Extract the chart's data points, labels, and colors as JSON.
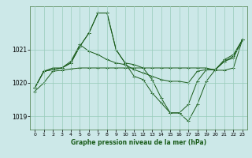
{
  "bg_color": "#cce8e8",
  "grid_color": "#99ccbb",
  "line_color": "#1a5c1a",
  "marker_color": "#1a5c1a",
  "xlabel": "Graphe pression niveau de la mer (hPa)",
  "ylim": [
    1018.6,
    1022.3
  ],
  "xlim": [
    -0.5,
    23.5
  ],
  "yticks": [
    1019,
    1020,
    1021
  ],
  "xticks": [
    0,
    1,
    2,
    3,
    4,
    5,
    6,
    7,
    8,
    9,
    10,
    11,
    12,
    13,
    14,
    15,
    16,
    17,
    18,
    19,
    20,
    21,
    22,
    23
  ],
  "series": [
    [
      1019.75,
      1020.0,
      1020.35,
      1020.38,
      1020.42,
      1020.45,
      1020.45,
      1020.45,
      1020.45,
      1020.45,
      1020.45,
      1020.45,
      1020.45,
      1020.45,
      1020.45,
      1020.45,
      1020.45,
      1020.45,
      1020.45,
      1020.45,
      1020.38,
      1020.38,
      1020.45,
      1021.3
    ],
    [
      1019.85,
      1020.35,
      1020.4,
      1020.45,
      1020.6,
      1021.1,
      1021.5,
      1022.1,
      1022.1,
      1021.0,
      1020.6,
      1020.55,
      1020.45,
      1020.1,
      1019.55,
      1019.1,
      1019.1,
      1018.85,
      1019.35,
      1020.05,
      1020.4,
      1020.65,
      1020.8,
      1021.3
    ],
    [
      1019.85,
      1020.35,
      1020.4,
      1020.45,
      1020.6,
      1021.1,
      1021.5,
      1022.1,
      1022.1,
      1021.0,
      1020.6,
      1020.2,
      1020.1,
      1019.7,
      1019.4,
      1019.1,
      1019.1,
      1019.35,
      1020.05,
      1020.4,
      1020.4,
      1020.7,
      1020.85,
      1021.3
    ],
    [
      1019.85,
      1020.35,
      1020.45,
      1020.45,
      1020.65,
      1021.15,
      1020.95,
      1020.85,
      1020.7,
      1020.6,
      1020.55,
      1020.4,
      1020.3,
      1020.2,
      1020.1,
      1020.05,
      1020.05,
      1020.0,
      1020.35,
      1020.4,
      1020.4,
      1020.65,
      1020.75,
      1021.3
    ]
  ]
}
